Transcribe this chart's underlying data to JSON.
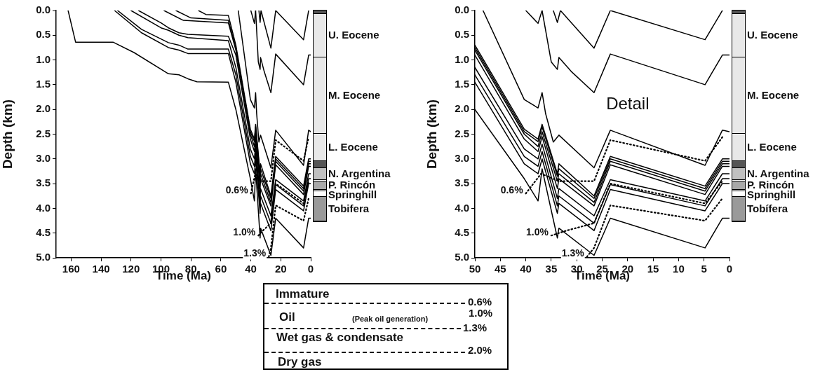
{
  "chart_data": [
    {
      "type": "line",
      "xlabel": "Time (Ma)",
      "ylabel": "Depth (km)",
      "xlim": [
        170,
        0
      ],
      "xticks": [
        160,
        140,
        120,
        100,
        80,
        60,
        40,
        20,
        0
      ],
      "ylim": [
        5,
        0
      ],
      "yticks": [
        {
          "value": 0,
          "label": "0.0"
        },
        {
          "value": 0.5,
          "label": "0.5"
        },
        {
          "value": 1,
          "label": "1.0"
        },
        {
          "value": 1.5,
          "label": "1.5"
        },
        {
          "value": 2,
          "label": "2.0"
        },
        {
          "value": 2.5,
          "label": "2.5"
        },
        {
          "value": 3,
          "label": "3.0"
        },
        {
          "value": 3.5,
          "label": "3.5"
        },
        {
          "value": 4,
          "label": "4.0"
        },
        {
          "value": 4.5,
          "label": "4.5"
        },
        {
          "value": 5,
          "label": "5.0"
        }
      ],
      "grid": false,
      "legend": false,
      "marker": "none",
      "annotations": [
        "U. Eocene",
        "M. Eocene",
        "L. Eocene",
        "N. Argentina",
        "P. Rincón",
        "Springhill",
        "Tobifera"
      ],
      "series": [
        {
          "color": "#000000",
          "x": [
            40,
            37.6,
            36.8
          ],
          "values": [
            0,
            0.26,
            0
          ]
        },
        {
          "color": "#000000",
          "x": [
            34.6,
            33.8,
            33.2,
            26.6,
            23.4
          ],
          "values": [
            0,
            0.24,
            0,
            0.76,
            0
          ]
        },
        {
          "color": "#000000",
          "x": [
            23.4,
            4.8,
            1.4
          ],
          "values": [
            0,
            0.59,
            0
          ]
        },
        {
          "color": "#000000",
          "x": [
            36.8,
            35,
            33.8,
            33.5,
            31.1,
            26.6,
            23.4,
            4.8,
            1.4,
            0
          ],
          "values": [
            0,
            1.04,
            1.19,
            0.95,
            1.23,
            1.66,
            0.88,
            1.5,
            0.9,
            0.9
          ]
        },
        {
          "color": "#000000",
          "x": [
            48.4,
            40.3,
            37.6,
            36.8,
            36.1,
            34.6,
            33.5,
            26.6,
            23.4,
            4.8,
            1.4,
            0
          ],
          "values": [
            0,
            1.8,
            1.97,
            1.66,
            2.09,
            2.66,
            2.52,
            3.18,
            2.42,
            3.13,
            2.42,
            2.45
          ]
        },
        {
          "color": "#000000",
          "x": [
            75,
            70,
            55,
            50,
            40.3,
            37.6,
            36.8,
            33.8,
            33.5,
            26.6,
            23.4,
            4.8,
            1.4,
            0
          ],
          "values": [
            0,
            0.08,
            0.1,
            0.7,
            2.4,
            2.6,
            2.3,
            3.3,
            3.1,
            3.75,
            2.95,
            3.55,
            3,
            3
          ]
        },
        {
          "color": "#000000",
          "x": [
            90,
            80,
            55,
            50,
            40.3,
            37.6,
            36.8,
            33.8,
            33.5,
            26.6,
            23.4,
            4.8,
            1.4,
            0
          ],
          "values": [
            0,
            0.15,
            0.2,
            0.75,
            2.45,
            2.65,
            2.35,
            3.35,
            3.2,
            3.8,
            3,
            3.6,
            3.05,
            3.05
          ]
        },
        {
          "color": "#000000",
          "x": [
            98,
            85,
            55,
            50,
            40.3,
            37.6,
            36.8,
            33.8,
            33.5,
            26.6,
            23.4,
            4.8,
            1.4,
            0
          ],
          "values": [
            0,
            0.2,
            0.25,
            0.8,
            2.5,
            2.75,
            2.45,
            3.45,
            3.3,
            3.88,
            3.05,
            3.65,
            3.1,
            3.1
          ]
        },
        {
          "color": "#000000",
          "x": [
            115,
            100,
            95,
            88,
            82,
            55,
            50,
            40.3,
            37.6,
            36.8,
            33.8,
            33.5,
            26.6,
            23.4,
            4.8,
            1.4,
            0
          ],
          "values": [
            0,
            0.25,
            0.35,
            0.45,
            0.48,
            0.52,
            0.9,
            2.6,
            2.85,
            2.55,
            3.6,
            3.4,
            3.95,
            3.12,
            3.72,
            3.15,
            3.15
          ]
        },
        {
          "color": "#000000",
          "x": [
            120,
            100,
            95,
            88,
            82,
            55,
            50,
            40.3,
            37.6,
            36.8,
            33.8,
            33.5,
            26.6,
            23.4,
            4.8,
            1.4,
            0
          ],
          "values": [
            0,
            0.35,
            0.4,
            0.5,
            0.55,
            0.61,
            1.15,
            2.8,
            3,
            2.7,
            3.8,
            3.6,
            4.15,
            3.42,
            3.85,
            3.3,
            3.3
          ]
        },
        {
          "color": "#000000",
          "x": [
            129,
            113,
            95,
            88,
            82,
            55,
            50,
            40.3,
            37.6,
            36.8,
            33.8,
            33.5,
            26.6,
            23.4,
            4.8,
            1.4,
            0
          ],
          "values": [
            0,
            0.38,
            0.65,
            0.7,
            0.78,
            0.78,
            1.3,
            2.95,
            3.15,
            2.85,
            3.95,
            3.75,
            4.3,
            3.52,
            3.95,
            3.4,
            3.4
          ]
        },
        {
          "color": "#000000",
          "x": [
            131,
            113,
            95,
            88,
            82,
            55,
            50,
            40.3,
            37.6,
            36.8,
            33.8,
            33.5,
            26.6,
            23.4,
            4.8,
            1.4,
            0
          ],
          "values": [
            0,
            0.45,
            0.75,
            0.8,
            0.87,
            0.87,
            1.45,
            3.1,
            3.3,
            3,
            4.1,
            3.9,
            4.45,
            3.62,
            4.05,
            3.5,
            3.5
          ]
        },
        {
          "color": "#000000",
          "x": [
            162,
            157,
            132,
            118,
            95,
            88,
            82,
            76,
            55,
            50,
            40.3,
            37.6,
            36.8,
            33.8,
            33.5,
            26.6,
            23.4,
            4.8,
            1.4,
            0
          ],
          "values": [
            0,
            0.64,
            0.64,
            0.85,
            1.28,
            1.3,
            1.38,
            1.44,
            1.45,
            2,
            3.4,
            3.85,
            3.2,
            4.6,
            4.4,
            4.95,
            4.2,
            4.8,
            4.2,
            4.2
          ]
        },
        {
          "name": "0.6%",
          "color": "#000000",
          "line_style": "dotted",
          "x": [
            40,
            37,
            33.5,
            26.6,
            23.4,
            4.8,
            1.4
          ],
          "values": [
            3.7,
            3.3,
            3.45,
            3.45,
            2.62,
            3.04,
            2.56
          ]
        },
        {
          "name": "1.0%",
          "color": "#000000",
          "line_style": "dotted",
          "x": [
            35,
            32,
            26.6,
            23.4,
            4.8,
            1.4
          ],
          "values": [
            4.55,
            4.45,
            4.3,
            3.5,
            3.9,
            3.45
          ]
        },
        {
          "name": "1.3%",
          "color": "#000000",
          "line_style": "dotted",
          "x": [
            28,
            26.6,
            23.4,
            4.8,
            1.4
          ],
          "values": [
            4.98,
            4.8,
            3.94,
            4.25,
            3.8
          ]
        }
      ]
    },
    {
      "type": "line",
      "xlabel": "Time (Ma)",
      "ylabel": "Depth (km)",
      "xlim": [
        50,
        0
      ],
      "xticks": [
        50,
        45,
        40,
        35,
        30,
        25,
        20,
        15,
        10,
        5,
        0
      ],
      "ylim": [
        5,
        0
      ],
      "yticks": [
        {
          "value": 0,
          "label": "0.0"
        },
        {
          "value": 0.5,
          "label": "0.5"
        },
        {
          "value": 1,
          "label": "1.0"
        },
        {
          "value": 1.5,
          "label": "1.5"
        },
        {
          "value": 2,
          "label": "2.0"
        },
        {
          "value": 2.5,
          "label": "2.5"
        },
        {
          "value": 3,
          "label": "3.0"
        },
        {
          "value": 3.5,
          "label": "3.5"
        },
        {
          "value": 4,
          "label": "4.0"
        },
        {
          "value": 4.5,
          "label": "4.5"
        },
        {
          "value": 5,
          "label": "5.0"
        }
      ],
      "grid": false,
      "legend": false,
      "marker": "none",
      "annotations": [
        "Detail",
        "U. Eocene",
        "M. Eocene",
        "L. Eocene",
        "N. Argentina",
        "P. Rincón",
        "Springhill",
        "Tobífera"
      ],
      "series": [
        {
          "color": "#000000",
          "x": [
            40,
            37.6,
            36.8
          ],
          "values": [
            0,
            0.26,
            0
          ]
        },
        {
          "color": "#000000",
          "x": [
            34.6,
            33.8,
            33.2,
            26.6,
            23.4
          ],
          "values": [
            0,
            0.24,
            0,
            0.76,
            0
          ]
        },
        {
          "color": "#000000",
          "x": [
            23.4,
            4.8,
            1.4
          ],
          "values": [
            0,
            0.59,
            0
          ]
        },
        {
          "color": "#000000",
          "x": [
            36.8,
            35,
            33.8,
            33.5,
            31.1,
            26.6,
            23.4,
            4.8,
            1.4,
            0
          ],
          "values": [
            0,
            1.04,
            1.19,
            0.95,
            1.23,
            1.66,
            0.88,
            1.5,
            0.9,
            0.9
          ]
        },
        {
          "color": "#000000",
          "x": [
            48.4,
            40.3,
            37.6,
            36.8,
            36.1,
            34.6,
            33.5,
            26.6,
            23.4,
            4.8,
            1.4,
            0
          ],
          "values": [
            0,
            1.8,
            1.97,
            1.66,
            2.09,
            2.66,
            2.52,
            3.18,
            2.42,
            3.13,
            2.42,
            2.45
          ]
        },
        {
          "color": "#000000",
          "x": [
            50,
            40.3,
            37.6,
            36.8,
            33.8,
            33.5,
            26.6,
            23.4,
            4.8,
            1.4,
            0
          ],
          "values": [
            0.7,
            2.4,
            2.6,
            2.3,
            3.3,
            3.1,
            3.75,
            2.95,
            3.55,
            3,
            3
          ]
        },
        {
          "color": "#000000",
          "x": [
            50,
            40.3,
            37.6,
            36.8,
            33.8,
            33.5,
            26.6,
            23.4,
            4.8,
            1.4,
            0
          ],
          "values": [
            0.75,
            2.45,
            2.65,
            2.35,
            3.35,
            3.2,
            3.8,
            3,
            3.6,
            3.05,
            3.05
          ]
        },
        {
          "color": "#000000",
          "x": [
            50,
            40.3,
            37.6,
            36.8,
            33.8,
            33.5,
            26.6,
            23.4,
            4.8,
            1.4,
            0
          ],
          "values": [
            0.8,
            2.5,
            2.75,
            2.45,
            3.45,
            3.3,
            3.88,
            3.05,
            3.65,
            3.1,
            3.1
          ]
        },
        {
          "color": "#000000",
          "x": [
            50,
            40.3,
            37.6,
            36.8,
            33.8,
            33.5,
            26.6,
            23.4,
            4.8,
            1.4,
            0
          ],
          "values": [
            0.9,
            2.6,
            2.85,
            2.55,
            3.6,
            3.4,
            3.95,
            3.12,
            3.72,
            3.15,
            3.15
          ]
        },
        {
          "color": "#000000",
          "x": [
            50,
            40.3,
            37.6,
            36.8,
            33.8,
            33.5,
            26.6,
            23.4,
            4.8,
            1.4,
            0
          ],
          "values": [
            1.15,
            2.8,
            3,
            2.7,
            3.8,
            3.6,
            4.15,
            3.42,
            3.85,
            3.3,
            3.3
          ]
        },
        {
          "color": "#000000",
          "x": [
            50,
            40.3,
            37.6,
            36.8,
            33.8,
            33.5,
            26.6,
            23.4,
            4.8,
            1.4,
            0
          ],
          "values": [
            1.3,
            2.95,
            3.15,
            2.85,
            3.95,
            3.75,
            4.3,
            3.52,
            3.95,
            3.4,
            3.4
          ]
        },
        {
          "color": "#000000",
          "x": [
            50,
            40.3,
            37.6,
            36.8,
            33.8,
            33.5,
            26.6,
            23.4,
            4.8,
            1.4,
            0
          ],
          "values": [
            1.45,
            3.1,
            3.3,
            3,
            4.1,
            3.9,
            4.45,
            3.62,
            4.05,
            3.5,
            3.5
          ]
        },
        {
          "color": "#000000",
          "x": [
            50,
            40.3,
            37.6,
            36.8,
            33.8,
            33.5,
            26.6,
            23.4,
            4.8,
            1.4,
            0
          ],
          "values": [
            2,
            3.4,
            3.85,
            3.2,
            4.6,
            4.4,
            4.95,
            4.2,
            4.8,
            4.2,
            4.2
          ]
        },
        {
          "name": "0.6%",
          "color": "#000000",
          "line_style": "dotted",
          "x": [
            40,
            37,
            33.5,
            26.6,
            23.4,
            4.8,
            1.4
          ],
          "values": [
            3.7,
            3.3,
            3.45,
            3.45,
            2.62,
            3.04,
            2.56
          ]
        },
        {
          "name": "1.0%",
          "color": "#000000",
          "line_style": "dotted",
          "x": [
            35,
            32,
            26.6,
            23.4,
            4.8,
            1.4
          ],
          "values": [
            4.55,
            4.45,
            4.3,
            3.5,
            3.9,
            3.45
          ]
        },
        {
          "name": "1.3%",
          "color": "#000000",
          "line_style": "dotted",
          "x": [
            28,
            26.6,
            23.4,
            4.8,
            1.4
          ],
          "values": [
            4.98,
            4.8,
            3.94,
            4.25,
            3.8
          ]
        }
      ]
    },
    {
      "type": "other",
      "annotations": [
        "Immature",
        "0.6%",
        "Oil",
        "(Peak oil generation)",
        "1.0%",
        "1.3%",
        "Wet gas & condensate",
        "2.0%",
        "Dry gas"
      ]
    }
  ]
}
